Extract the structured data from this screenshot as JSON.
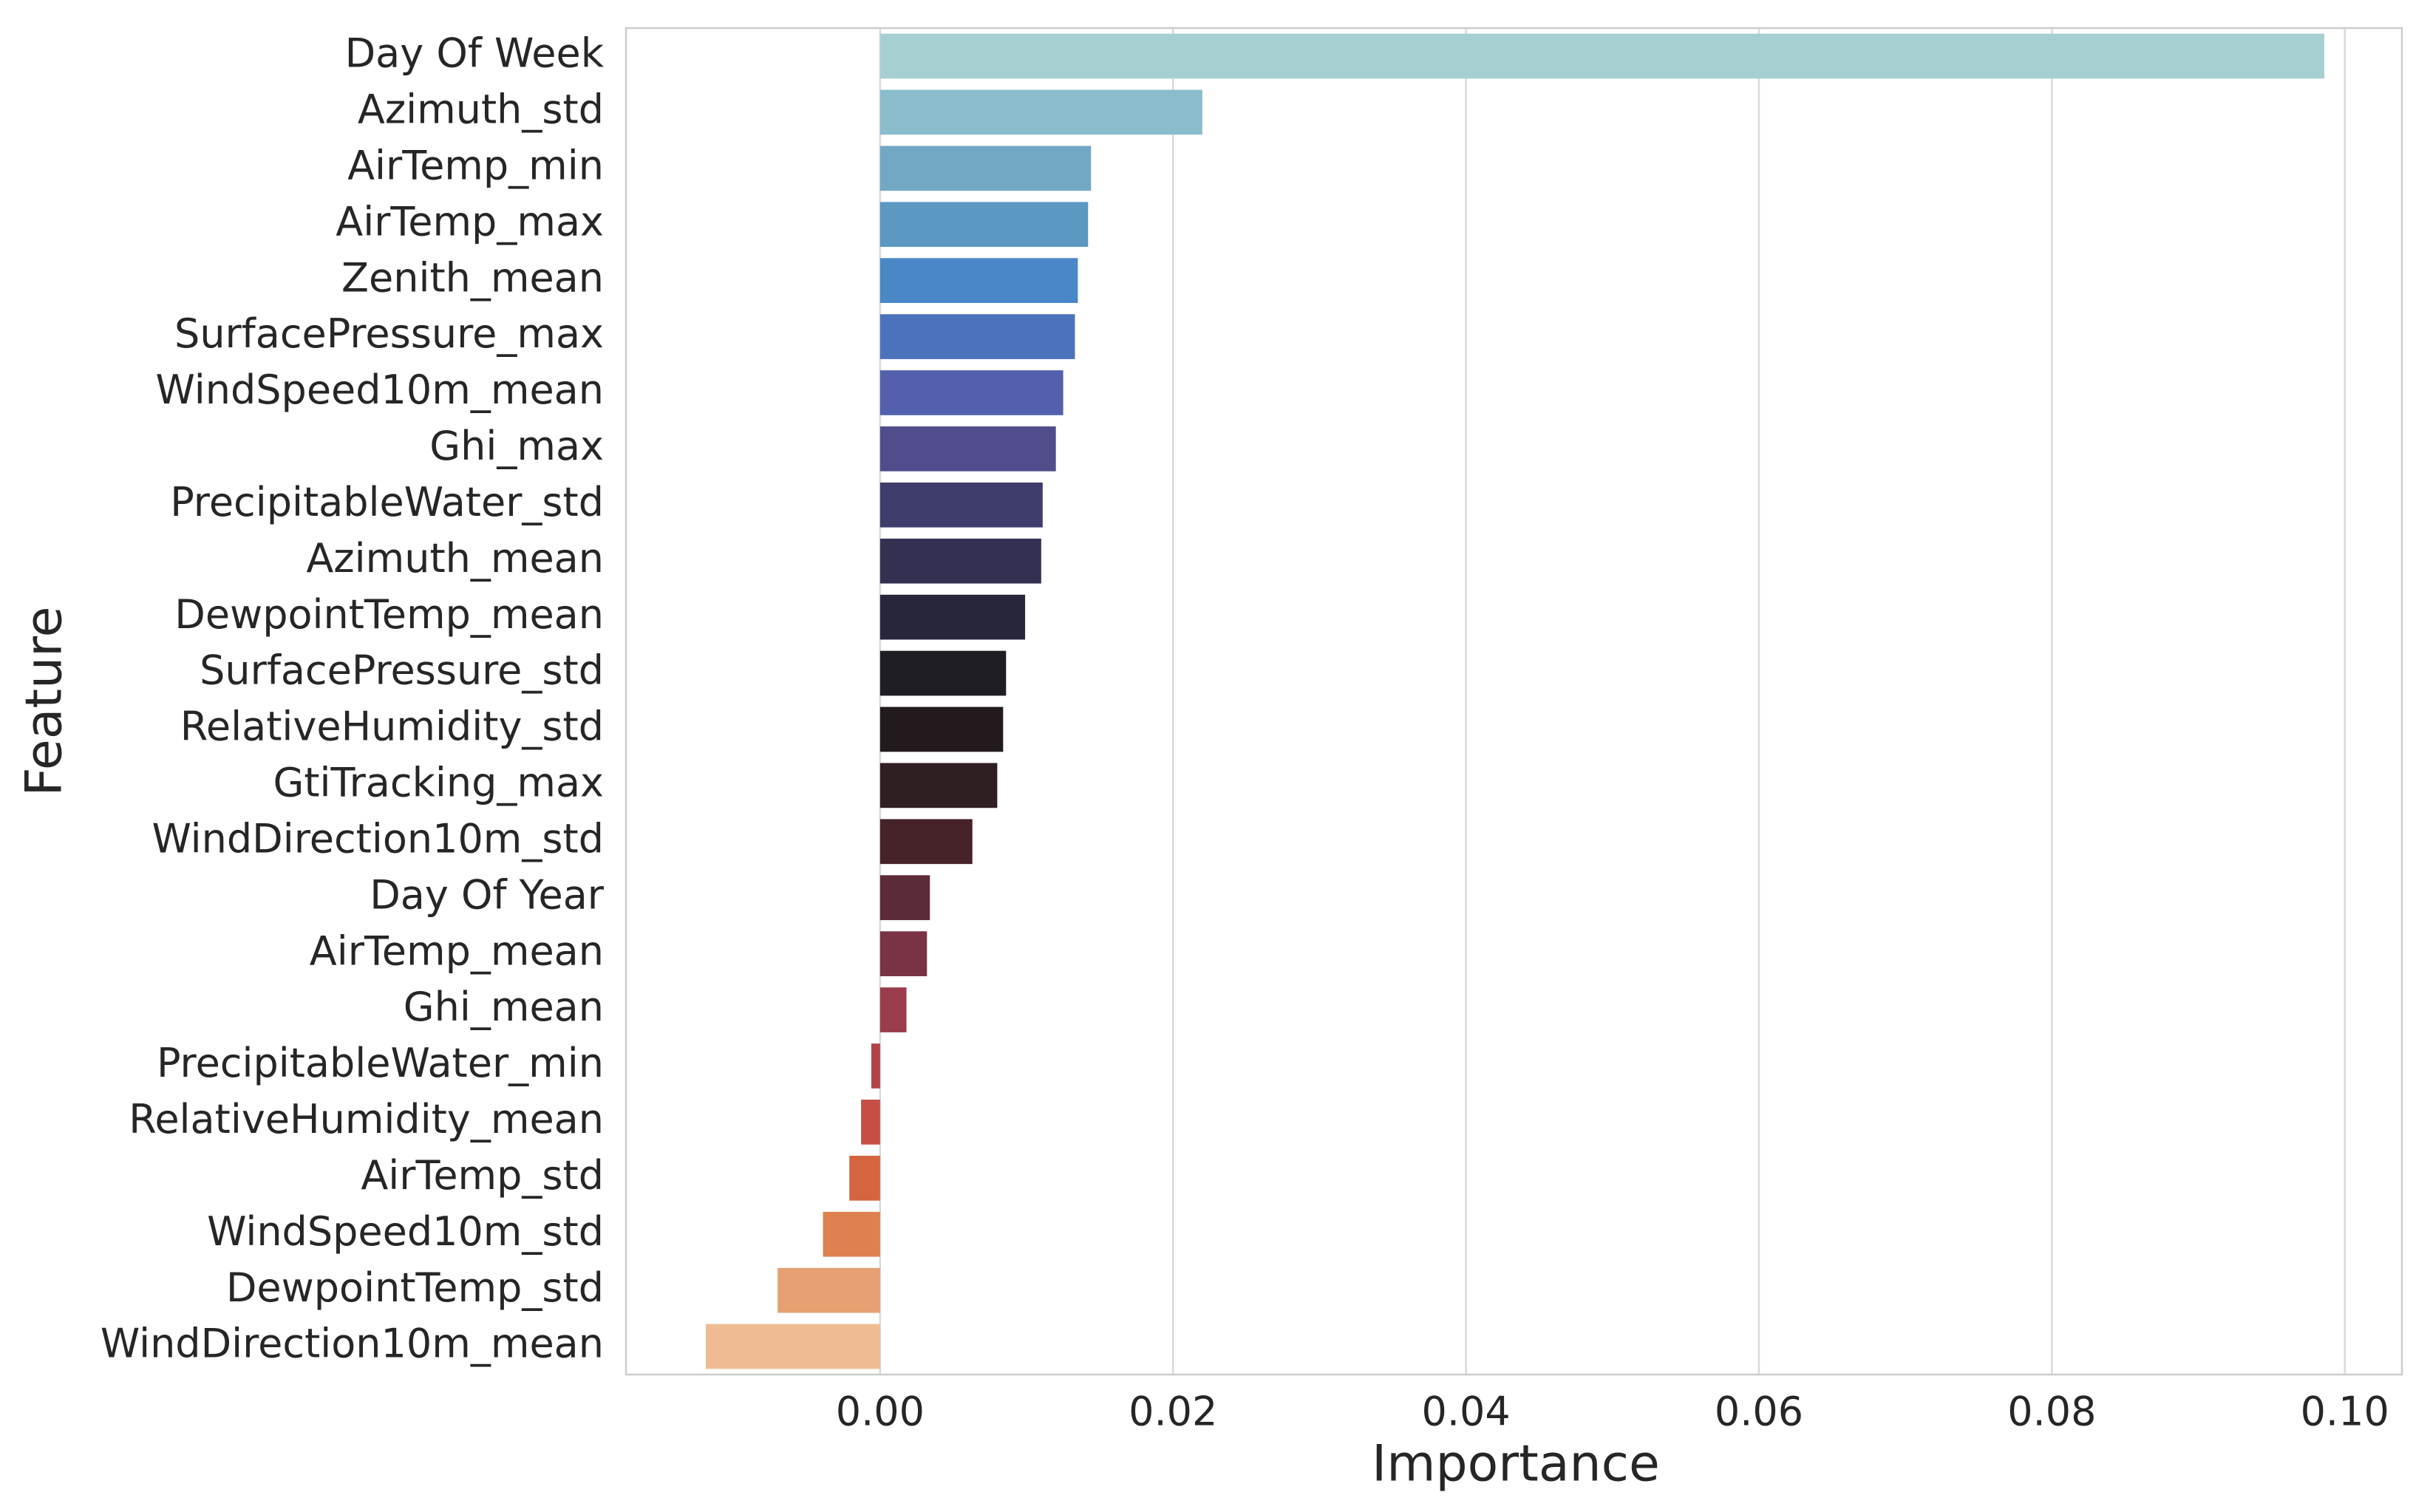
{
  "chart_data": {
    "type": "barh",
    "xlabel": "Importance",
    "ylabel": "Feature",
    "categories": [
      "Day Of Week",
      "Azimuth_std",
      "AirTemp_min",
      "AirTemp_max",
      "Zenith_mean",
      "SurfacePressure_max",
      "WindSpeed10m_mean",
      "Ghi_max",
      "PrecipitableWater_std",
      "Azimuth_mean",
      "DewpointTemp_mean",
      "SurfacePressure_std",
      "RelativeHumidity_std",
      "GtiTracking_max",
      "WindDirection10m_std",
      "Day Of Year",
      "AirTemp_mean",
      "Ghi_mean",
      "PrecipitableWater_min",
      "RelativeHumidity_mean",
      "AirTemp_std",
      "WindSpeed10m_std",
      "DewpointTemp_std",
      "WindDirection10m_mean"
    ],
    "values": [
      0.0986,
      0.022,
      0.0144,
      0.0142,
      0.0135,
      0.0133,
      0.0125,
      0.012,
      0.0111,
      0.011,
      0.0099,
      0.0086,
      0.0084,
      0.008,
      0.0063,
      0.0034,
      0.0032,
      0.0018,
      -0.0006,
      -0.0013,
      -0.0021,
      -0.0039,
      -0.007,
      -0.0119
    ],
    "colors": [
      "#a6cfd1",
      "#8bbccb",
      "#73a8c4",
      "#5b98c2",
      "#4a87c7",
      "#4d72bd",
      "#5260ad",
      "#514d8c",
      "#3f3d6b",
      "#323151",
      "#28263a",
      "#1f1e24",
      "#221a1c",
      "#2f1f23",
      "#462328",
      "#5d2a37",
      "#7a3245",
      "#9a3c4b",
      "#b24449",
      "#c54f44",
      "#d4653f",
      "#de8050",
      "#e6a071",
      "#efbb93"
    ],
    "xlim": [
      -0.01735,
      0.1039
    ],
    "xticks": [
      {
        "value": 0,
        "label": "0.00"
      },
      {
        "value": 0.02,
        "label": "0.02"
      },
      {
        "value": 0.04,
        "label": "0.04"
      },
      {
        "value": 0.06,
        "label": "0.06"
      },
      {
        "value": 0.08,
        "label": "0.08"
      },
      {
        "value": 0.1,
        "label": "0.10"
      }
    ],
    "grid": true
  }
}
